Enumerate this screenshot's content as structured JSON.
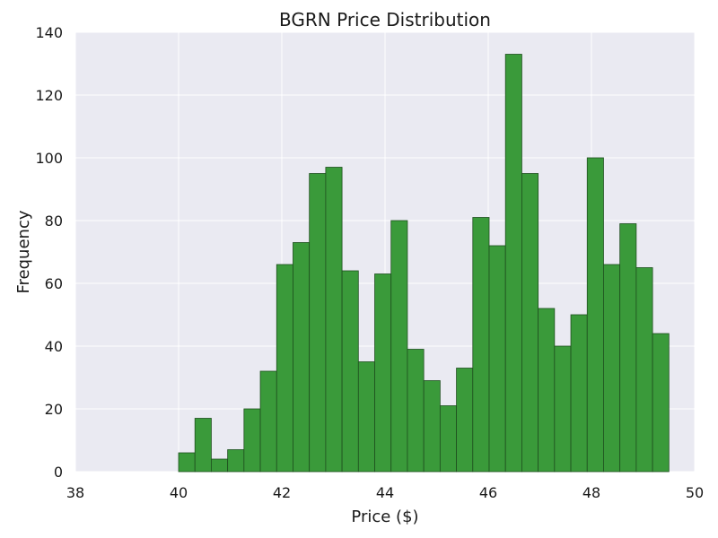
{
  "chart_data": {
    "type": "bar",
    "title": "BGRN Price Distribution",
    "xlabel": "Price ($)",
    "ylabel": "Frequency",
    "xlim": [
      38,
      50
    ],
    "ylim": [
      0,
      140
    ],
    "xticks": [
      "38",
      "40",
      "42",
      "44",
      "46",
      "48",
      "50"
    ],
    "yticks": [
      "0",
      "20",
      "40",
      "60",
      "80",
      "100",
      "120",
      "140"
    ],
    "grid": true,
    "colors": {
      "bar_fill": "#3a9a3a",
      "bar_edge": "#1f4f1f",
      "plot_bg": "#eaeaf2",
      "grid": "#ffffff"
    },
    "bins": {
      "start": 40.0,
      "width": 0.3167,
      "counts": [
        6,
        17,
        4,
        7,
        20,
        32,
        66,
        73,
        95,
        97,
        64,
        35,
        63,
        80,
        39,
        29,
        21,
        33,
        81,
        72,
        133,
        95,
        52,
        40,
        50,
        100,
        66,
        79,
        65,
        44
      ]
    }
  }
}
